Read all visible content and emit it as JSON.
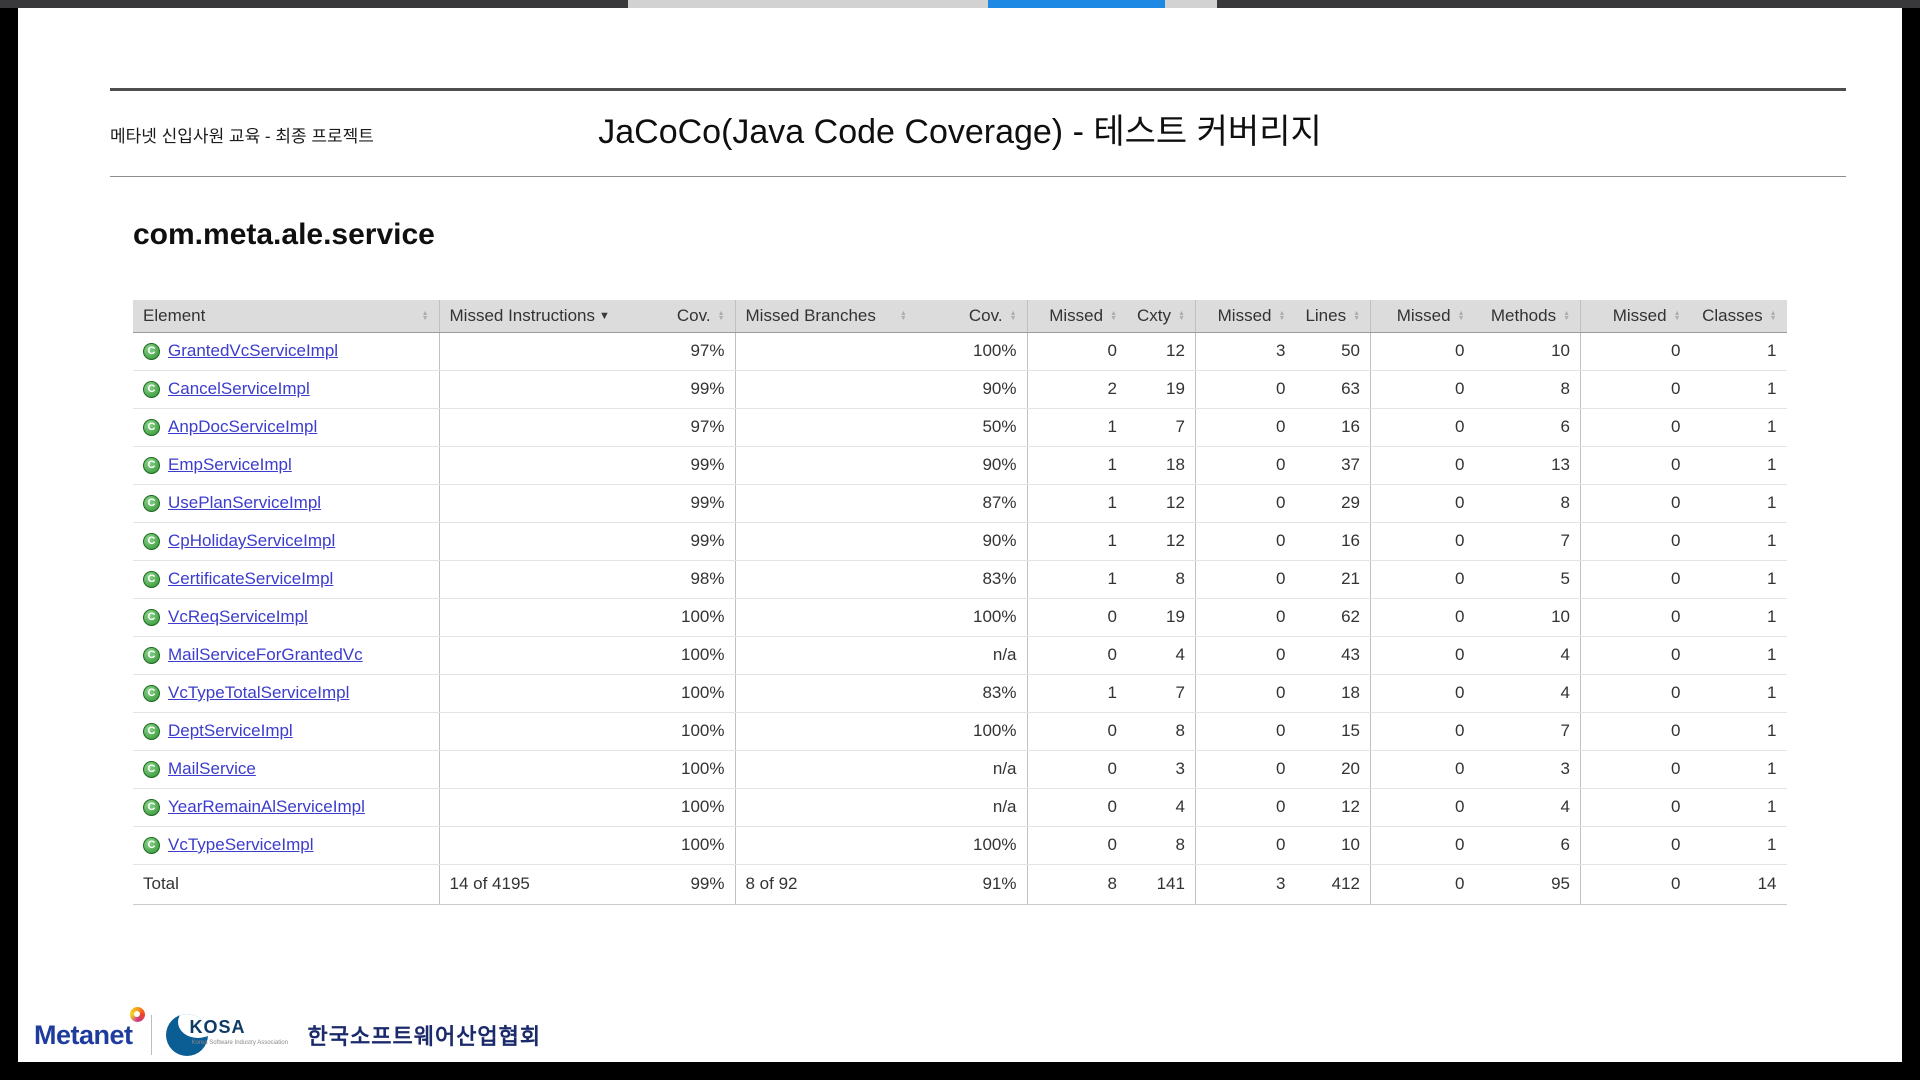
{
  "top_bar": {
    "accent_color": "#1e88e5"
  },
  "header": {
    "course_label": "메타넷 신입사원 교육 - 최종 프로젝트",
    "title": "JaCoCo(Java Code Coverage) - 테스트 커버리지"
  },
  "package": {
    "title": "com.meta.ale.service"
  },
  "table": {
    "columns": [
      "Element",
      "Missed Instructions",
      "Cov.",
      "Missed Branches",
      "Cov.",
      "Missed",
      "Cxty",
      "Missed",
      "Lines",
      "Missed",
      "Methods",
      "Missed",
      "Classes"
    ],
    "sorted_column": "Missed Instructions",
    "sort_direction": "desc",
    "class_icon_letter": "C",
    "bar_colors": {
      "covered": "#3aad35",
      "missed": "#e4433b"
    },
    "rows": [
      {
        "name": "GrantedVcServiceImpl",
        "instr_bar_width": 134,
        "instr_bar_missed": 3,
        "instr_cov": "97%",
        "branch_bar_width": 35,
        "branch_bar_missed": 0,
        "branch_cov": "100%",
        "missed_cxty": 0,
        "cxty": 12,
        "missed_lines": 3,
        "lines": 50,
        "missed_methods": 0,
        "methods": 10,
        "missed_classes": 0,
        "classes": 1
      },
      {
        "name": "CancelServiceImpl",
        "instr_bar_width": 213,
        "instr_bar_missed": 3,
        "instr_cov": "99%",
        "branch_bar_width": 210,
        "branch_bar_missed": 17,
        "branch_cov": "90%",
        "missed_cxty": 2,
        "cxty": 19,
        "missed_lines": 0,
        "lines": 63,
        "missed_methods": 0,
        "methods": 8,
        "missed_classes": 0,
        "classes": 1
      },
      {
        "name": "AnpDocServiceImpl",
        "instr_bar_width": 46,
        "instr_bar_missed": 2,
        "instr_cov": "97%",
        "branch_bar_width": 16,
        "branch_bar_missed": 8,
        "branch_cov": "50%",
        "missed_cxty": 1,
        "cxty": 7,
        "missed_lines": 0,
        "lines": 16,
        "missed_methods": 0,
        "methods": 6,
        "missed_classes": 0,
        "classes": 1
      },
      {
        "name": "EmpServiceImpl",
        "instr_bar_width": 133,
        "instr_bar_missed": 2,
        "instr_cov": "99%",
        "branch_bar_width": 88,
        "branch_bar_missed": 9,
        "branch_cov": "90%",
        "missed_cxty": 1,
        "cxty": 18,
        "missed_lines": 0,
        "lines": 37,
        "missed_methods": 0,
        "methods": 13,
        "missed_classes": 0,
        "classes": 1
      },
      {
        "name": "UsePlanServiceImpl",
        "instr_bar_width": 108,
        "instr_bar_missed": 2,
        "instr_cov": "99%",
        "branch_bar_width": 68,
        "branch_bar_missed": 9,
        "branch_cov": "87%",
        "missed_cxty": 1,
        "cxty": 12,
        "missed_lines": 0,
        "lines": 29,
        "missed_methods": 0,
        "methods": 8,
        "missed_classes": 0,
        "classes": 1
      },
      {
        "name": "CpHolidayServiceImpl",
        "instr_bar_width": 62,
        "instr_bar_missed": 1,
        "instr_cov": "99%",
        "branch_bar_width": 88,
        "branch_bar_missed": 9,
        "branch_cov": "90%",
        "missed_cxty": 1,
        "cxty": 12,
        "missed_lines": 0,
        "lines": 16,
        "missed_methods": 0,
        "methods": 7,
        "missed_classes": 0,
        "classes": 1
      },
      {
        "name": "CertificateServiceImpl",
        "instr_bar_width": 57,
        "instr_bar_missed": 1,
        "instr_cov": "98%",
        "branch_bar_width": 46,
        "branch_bar_missed": 8,
        "branch_cov": "83%",
        "missed_cxty": 1,
        "cxty": 8,
        "missed_lines": 0,
        "lines": 21,
        "missed_methods": 0,
        "methods": 5,
        "missed_classes": 0,
        "classes": 1
      },
      {
        "name": "VcReqServiceImpl",
        "instr_bar_width": 194,
        "instr_bar_missed": 0,
        "instr_cov": "100%",
        "branch_bar_width": 176,
        "branch_bar_missed": 0,
        "branch_cov": "100%",
        "missed_cxty": 0,
        "cxty": 19,
        "missed_lines": 0,
        "lines": 62,
        "missed_methods": 0,
        "methods": 10,
        "missed_classes": 0,
        "classes": 1
      },
      {
        "name": "MailServiceForGrantedVc",
        "instr_bar_width": 112,
        "instr_bar_missed": 0,
        "instr_cov": "100%",
        "branch_bar_width": 0,
        "branch_bar_missed": 0,
        "branch_cov": "n/a",
        "missed_cxty": 0,
        "cxty": 4,
        "missed_lines": 0,
        "lines": 43,
        "missed_methods": 0,
        "methods": 4,
        "missed_classes": 0,
        "classes": 1
      },
      {
        "name": "VcTypeTotalServiceImpl",
        "instr_bar_width": 57,
        "instr_bar_missed": 0,
        "instr_cov": "100%",
        "branch_bar_width": 46,
        "branch_bar_missed": 8,
        "branch_cov": "83%",
        "missed_cxty": 1,
        "cxty": 7,
        "missed_lines": 0,
        "lines": 18,
        "missed_methods": 0,
        "methods": 4,
        "missed_classes": 0,
        "classes": 1
      },
      {
        "name": "DeptServiceImpl",
        "instr_bar_width": 54,
        "instr_bar_missed": 0,
        "instr_cov": "100%",
        "branch_bar_width": 18,
        "branch_bar_missed": 0,
        "branch_cov": "100%",
        "missed_cxty": 0,
        "cxty": 8,
        "missed_lines": 0,
        "lines": 15,
        "missed_methods": 0,
        "methods": 7,
        "missed_classes": 0,
        "classes": 1
      },
      {
        "name": "MailService",
        "instr_bar_width": 52,
        "instr_bar_missed": 0,
        "instr_cov": "100%",
        "branch_bar_width": 0,
        "branch_bar_missed": 0,
        "branch_cov": "n/a",
        "missed_cxty": 0,
        "cxty": 3,
        "missed_lines": 0,
        "lines": 20,
        "missed_methods": 0,
        "methods": 3,
        "missed_classes": 0,
        "classes": 1
      },
      {
        "name": "YearRemainAlServiceImpl",
        "instr_bar_width": 45,
        "instr_bar_missed": 0,
        "instr_cov": "100%",
        "branch_bar_width": 0,
        "branch_bar_missed": 0,
        "branch_cov": "n/a",
        "missed_cxty": 0,
        "cxty": 4,
        "missed_lines": 0,
        "lines": 12,
        "missed_methods": 0,
        "methods": 4,
        "missed_classes": 0,
        "classes": 1
      },
      {
        "name": "VcTypeServiceImpl",
        "instr_bar_width": 35,
        "instr_bar_missed": 0,
        "instr_cov": "100%",
        "branch_bar_width": 33,
        "branch_bar_missed": 0,
        "branch_cov": "100%",
        "missed_cxty": 0,
        "cxty": 8,
        "missed_lines": 0,
        "lines": 10,
        "missed_methods": 0,
        "methods": 6,
        "missed_classes": 0,
        "classes": 1
      }
    ],
    "total": {
      "label": "Total",
      "instr_text": "14 of 4195",
      "instr_cov": "99%",
      "branch_text": "8 of 92",
      "branch_cov": "91%",
      "missed_cxty": 8,
      "cxty": 141,
      "missed_lines": 3,
      "lines": 412,
      "missed_methods": 0,
      "methods": 95,
      "missed_classes": 0,
      "classes": 14
    }
  },
  "footer": {
    "metanet_label": "Metanet",
    "kosa_label": "KOSA",
    "kosa_caption": "Korea Software Industry Association",
    "association_label": "한국소프트웨어산업협회"
  }
}
